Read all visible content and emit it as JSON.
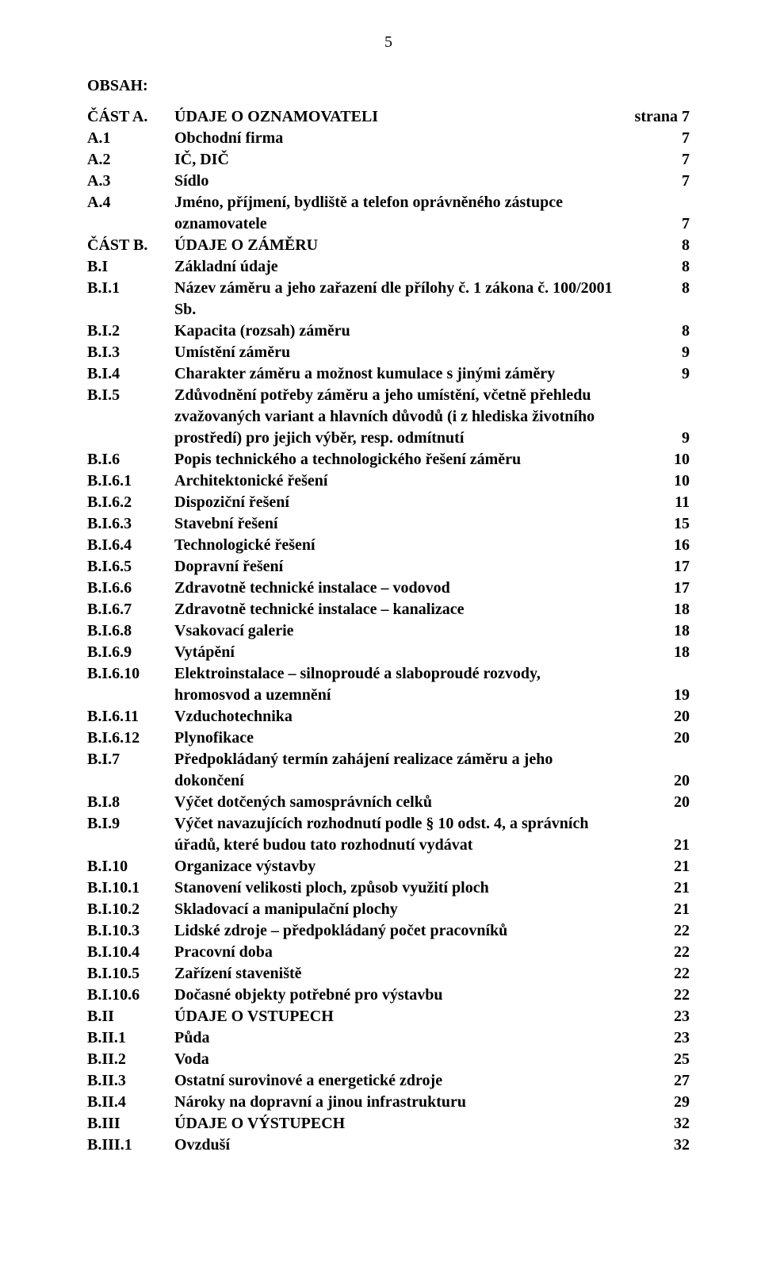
{
  "page_number": "5",
  "labels": {
    "obsah": "OBSAH:",
    "strana_prefix": "strana"
  },
  "toc": [
    {
      "label": "ČÁST A.",
      "title": "ÚDAJE O OZNAMOVATELI",
      "page": "7",
      "use_strana_prefix": true
    },
    {
      "label": "A.1",
      "title": "Obchodní firma",
      "page": "7"
    },
    {
      "label": "A.2",
      "title": "IČ, DIČ",
      "page": "7"
    },
    {
      "label": "A.3",
      "title": "Sídlo",
      "page": "7"
    },
    {
      "label": "A.4",
      "title": "Jméno, příjmení, bydliště a telefon oprávněného zástupce",
      "cont": [
        {
          "title": "oznamovatele",
          "page": "7"
        }
      ]
    },
    {
      "label": "ČÁST B.",
      "title": "ÚDAJE O ZÁMĚRU",
      "page": "8"
    },
    {
      "label": "B.I",
      "title": "Základní údaje",
      "page": "8"
    },
    {
      "label": "B.I.1",
      "title": "Název záměru a jeho zařazení dle přílohy č. 1 zákona č. 100/2001 Sb.",
      "page": "8"
    },
    {
      "label": "B.I.2",
      "title": "Kapacita (rozsah) záměru",
      "page": "8"
    },
    {
      "label": "B.I.3",
      "title": "Umístění záměru",
      "page": "9"
    },
    {
      "label": "B.I.4",
      "title": "Charakter záměru a možnost kumulace s jinými záměry",
      "page": "9"
    },
    {
      "label": "B.I.5",
      "title": "Zdůvodnění potřeby záměru a jeho umístění, včetně přehledu",
      "cont": [
        {
          "title": "zvažovaných variant a hlavních důvodů (i z hlediska životního"
        },
        {
          "title": "prostředí) pro jejich výběr, resp. odmítnutí",
          "page": "9"
        }
      ]
    },
    {
      "label": "B.I.6",
      "title": "Popis technického a technologického řešení záměru",
      "page": "10"
    },
    {
      "label": "B.I.6.1",
      "title": "Architektonické řešení",
      "page": "10"
    },
    {
      "label": "B.I.6.2",
      "title": "Dispoziční řešení",
      "page": "11"
    },
    {
      "label": "B.I.6.3",
      "title": "Stavební řešení",
      "page": "15"
    },
    {
      "label": "B.I.6.4",
      "title": "Technologické řešení",
      "page": "16"
    },
    {
      "label": "B.I.6.5",
      "title": "Dopravní řešení",
      "page": "17"
    },
    {
      "label": "B.I.6.6",
      "title": "Zdravotně technické instalace – vodovod",
      "page": "17"
    },
    {
      "label": "B.I.6.7",
      "title": "Zdravotně technické instalace – kanalizace",
      "page": "18"
    },
    {
      "label": "B.I.6.8",
      "title": "Vsakovací galerie",
      "page": "18"
    },
    {
      "label": "B.I.6.9",
      "title": "Vytápění",
      "page": "18"
    },
    {
      "label": "B.I.6.10",
      "title": "Elektroinstalace – silnoproudé a slaboproudé rozvody,",
      "cont": [
        {
          "title": "hromosvod a uzemnění",
          "page": "19"
        }
      ]
    },
    {
      "label": "B.I.6.11",
      "title": "Vzduchotechnika",
      "page": "20"
    },
    {
      "label": "B.I.6.12",
      "title": "Plynofikace",
      "page": "20"
    },
    {
      "label": "B.I.7",
      "title": "Předpokládaný termín zahájení realizace záměru a jeho",
      "cont": [
        {
          "title": "dokončení",
          "page": "20"
        }
      ]
    },
    {
      "label": "B.I.8",
      "title": "Výčet dotčených samosprávních celků",
      "page": "20"
    },
    {
      "label": "B.I.9",
      "title": "Výčet  navazujících rozhodnutí podle § 10 odst. 4, a správních",
      "cont": [
        {
          "title": "úřadů, které budou tato rozhodnutí vydávat",
          "page": "21"
        }
      ]
    },
    {
      "label": "B.I.10",
      "title": "Organizace výstavby",
      "page": "21"
    },
    {
      "label": "B.I.10.1",
      "title": "Stanovení velikosti ploch, způsob využití ploch",
      "page": "21"
    },
    {
      "label": "B.I.10.2",
      "title": "Skladovací a manipulační plochy",
      "page": "21"
    },
    {
      "label": "B.I.10.3",
      "title": "Lidské zdroje – předpokládaný počet pracovníků",
      "page": "22"
    },
    {
      "label": "B.I.10.4",
      "title": "Pracovní doba",
      "page": "22"
    },
    {
      "label": "B.I.10.5",
      "title": "Zařízení staveniště",
      "page": "22"
    },
    {
      "label": "B.I.10.6",
      "title": "Dočasné objekty potřebné pro výstavbu",
      "page": "22"
    },
    {
      "label": "B.II",
      "title": "ÚDAJE O VSTUPECH",
      "page": "23"
    },
    {
      "label": "B.II.1",
      "title": "Půda",
      "page": "23"
    },
    {
      "label": "B.II.2",
      "title": "Voda",
      "page": "25"
    },
    {
      "label": "B.II.3",
      "title": "Ostatní surovinové a energetické zdroje",
      "page": "27"
    },
    {
      "label": "B.II.4",
      "title": "Nároky na dopravní a jinou infrastrukturu",
      "page": "29"
    },
    {
      "label": "B.III",
      "title": "ÚDAJE O VÝSTUPECH",
      "page": "32"
    },
    {
      "label": "B.III.1",
      "title": "Ovzduší",
      "page": "32"
    }
  ]
}
